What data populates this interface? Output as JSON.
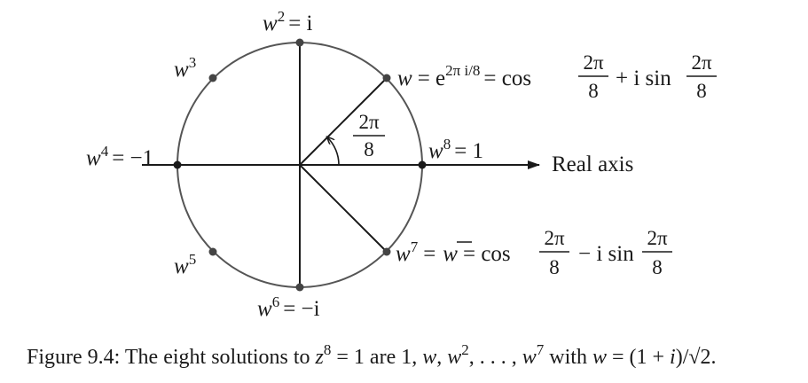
{
  "diagram": {
    "real_axis_label": "Real axis",
    "angle_label": {
      "numerator": "2π",
      "denominator": "8"
    },
    "points": [
      {
        "id": "w",
        "base": "w",
        "exp": "",
        "rhs": "= e",
        "rhs_exp": "2π i/8",
        "tail": "= cos",
        "frac_num": "2π",
        "frac_den": "8",
        "mid": "+ i sin",
        "frac2_num": "2π",
        "frac2_den": "8"
      },
      {
        "id": "w2",
        "base": "w",
        "exp": "2",
        "rhs": "= i"
      },
      {
        "id": "w3",
        "base": "w",
        "exp": "3"
      },
      {
        "id": "w4",
        "base": "w",
        "exp": "4",
        "rhs": "= −1"
      },
      {
        "id": "w5",
        "base": "w",
        "exp": "5"
      },
      {
        "id": "w6",
        "base": "w",
        "exp": "6",
        "rhs": "= −i"
      },
      {
        "id": "w7",
        "base": "w",
        "exp": "7",
        "rhs": "=",
        "conj": "w",
        "tail": "= cos",
        "frac_num": "2π",
        "frac_den": "8",
        "mid": "− i sin",
        "frac2_num": "2π",
        "frac2_den": "8"
      },
      {
        "id": "w8",
        "base": "w",
        "exp": "8",
        "rhs": "= 1"
      }
    ],
    "colors": {
      "ink": "#1a1a1a",
      "circle": "#555555",
      "dot": "#444444"
    }
  },
  "caption": {
    "prefix": "Figure 9.4: The eight solutions to ",
    "z": "z",
    "z_exp": "8",
    "eq": " = 1 are 1, ",
    "w1": "w",
    "comma1": ", ",
    "w2": "w",
    "w2_exp": "2",
    "dots": ", . . . , ",
    "w7": "w",
    "w7_exp": "7",
    "with": " with ",
    "w_def": "w",
    "def_rhs": " = (1 + ",
    "i": "i",
    "close": ")/",
    "sqrt": "√2",
    "end": "."
  }
}
